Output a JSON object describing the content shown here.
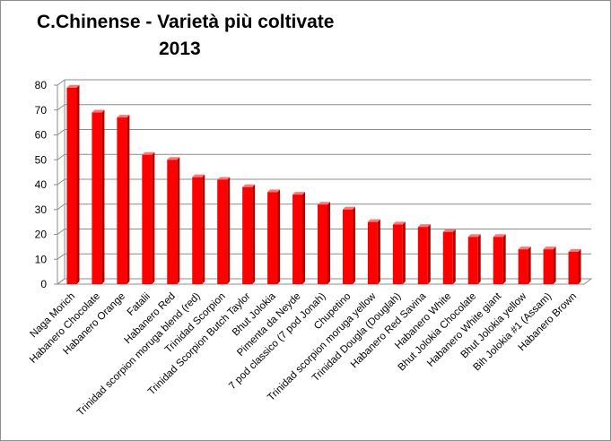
{
  "chart_data": {
    "type": "bar",
    "title": "C.Chinense - Varietà più coltivate",
    "subtitle": "2013",
    "categories": [
      "Naga Morich",
      "Habanero Chocolate",
      "Habanero Orange",
      "Fatalii",
      "Habanero Red",
      "Trinidad scorpion moruga blend (red)",
      "Trinidad Scorpion",
      "Trinidad Scorpion Butch Taylor",
      "Bhut Jolokia",
      "Pimenta da Neyde",
      "7 pod classico (7 pod Jonah)",
      "Chupetino",
      "Trinidad scorpion moruga yellow",
      "Trinidad Dougla (Douglah)",
      "Habanero Red Savina",
      "Habanero White",
      "Bhut Jolokia Chocolate",
      "Habanero White giant",
      "Bhut Jolokia yellow",
      "Bih Jolokia #1 (Assam)",
      "Habanero Brown"
    ],
    "values": [
      79,
      69,
      67,
      52,
      50,
      43,
      42,
      39,
      37,
      36,
      32,
      30,
      25,
      24,
      23,
      21,
      19,
      19,
      14,
      14,
      13
    ],
    "xlabel": "",
    "ylabel": "",
    "ylim": [
      0,
      80
    ],
    "yticks": [
      0,
      10,
      20,
      30,
      40,
      50,
      60,
      70,
      80
    ],
    "grid": true,
    "legend": "none",
    "colors": {
      "bar_front": "#ff0000",
      "bar_side": "#b00000",
      "bar_top": "#ff7777",
      "gridline": "#8c8c8c",
      "wall": "#ffffff"
    }
  }
}
